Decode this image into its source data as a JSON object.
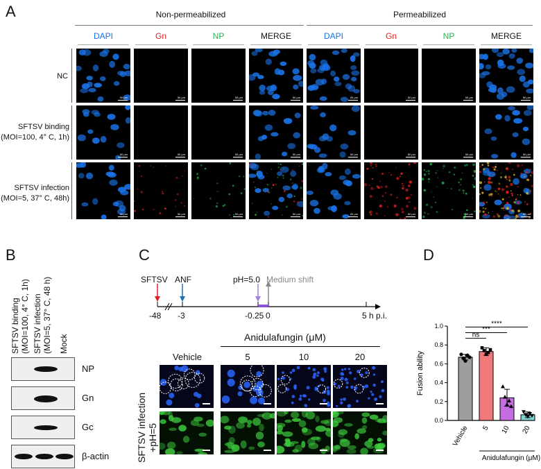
{
  "panels": {
    "a": "A",
    "b": "B",
    "c": "C",
    "d": "D"
  },
  "panelA": {
    "group_left": "Non-permeabilized",
    "group_right": "Permeabilized",
    "columns": [
      "DAPI",
      "Gn",
      "NP",
      "MERGE",
      "DAPI",
      "Gn",
      "NP",
      "MERGE"
    ],
    "rows": [
      {
        "line1": "NC",
        "line2": ""
      },
      {
        "line1": "SFTSV binding",
        "line2": "(MOI=100, 4° C, 1h)"
      },
      {
        "line1": "SFTSV infection",
        "line2": "(MOI=5, 37° C, 48h)"
      }
    ],
    "scalebar": "50 μm",
    "colors": {
      "dapi": "#1a73e8",
      "gn": "#e02020",
      "np": "#22b34a"
    }
  },
  "panelB": {
    "lanes": [
      "SFTSV binding (MOI=100, 4° C, 1h)",
      "SFTSV infection (MOI=5, 37° C, 48 h)",
      "Mock"
    ],
    "lane1_l1": "SFTSV binding",
    "lane1_l2": "(MOI=100, 4° C, 1h)",
    "lane2_l1": "SFTSV infection",
    "lane2_l2": "(MOI=5, 37° C, 48 h)",
    "lane3": "Mock",
    "blots": [
      "NP",
      "Gn",
      "Gc",
      "β-actin"
    ]
  },
  "panelC": {
    "timeline": {
      "t1": "SFTSV",
      "t2": "ANF",
      "t3": "pH=5.0",
      "t4": "Medium shift",
      "ticks": [
        "-48",
        "-3",
        "-0.25",
        "0",
        "5 h p.i."
      ]
    },
    "drug_label": "Anidulafungin (μM)",
    "conditions": [
      "Vehicle",
      "5",
      "10",
      "20"
    ],
    "side_l1": "SFTSV infection",
    "side_l2": "+pH=5"
  },
  "chart_data": {
    "type": "bar",
    "categories": [
      "Vehicle",
      "5",
      "10",
      "20"
    ],
    "values": [
      0.67,
      0.73,
      0.24,
      0.06
    ],
    "errors": [
      0.03,
      0.04,
      0.09,
      0.03
    ],
    "points": [
      [
        0.7,
        0.66,
        0.63,
        0.69,
        0.67
      ],
      [
        0.77,
        0.74,
        0.7,
        0.72,
        0.75
      ],
      [
        0.36,
        0.25,
        0.17,
        0.21,
        0.15
      ],
      [
        0.09,
        0.06,
        0.04,
        0.07,
        0.05
      ]
    ],
    "colors": [
      "#9e9e9e",
      "#f07a7a",
      "#c46de0",
      "#7fd3d3"
    ],
    "ylabel": "Fusion ability",
    "xlabel": "Anidulafungin (μM)",
    "ylim": [
      0,
      1.0
    ],
    "yticks": [
      "0.0",
      "0.2",
      "0.4",
      "0.6",
      "0.8",
      "1.0"
    ],
    "significance": [
      {
        "label": "ns"
      },
      {
        "label": "***"
      },
      {
        "label": "****"
      }
    ]
  }
}
